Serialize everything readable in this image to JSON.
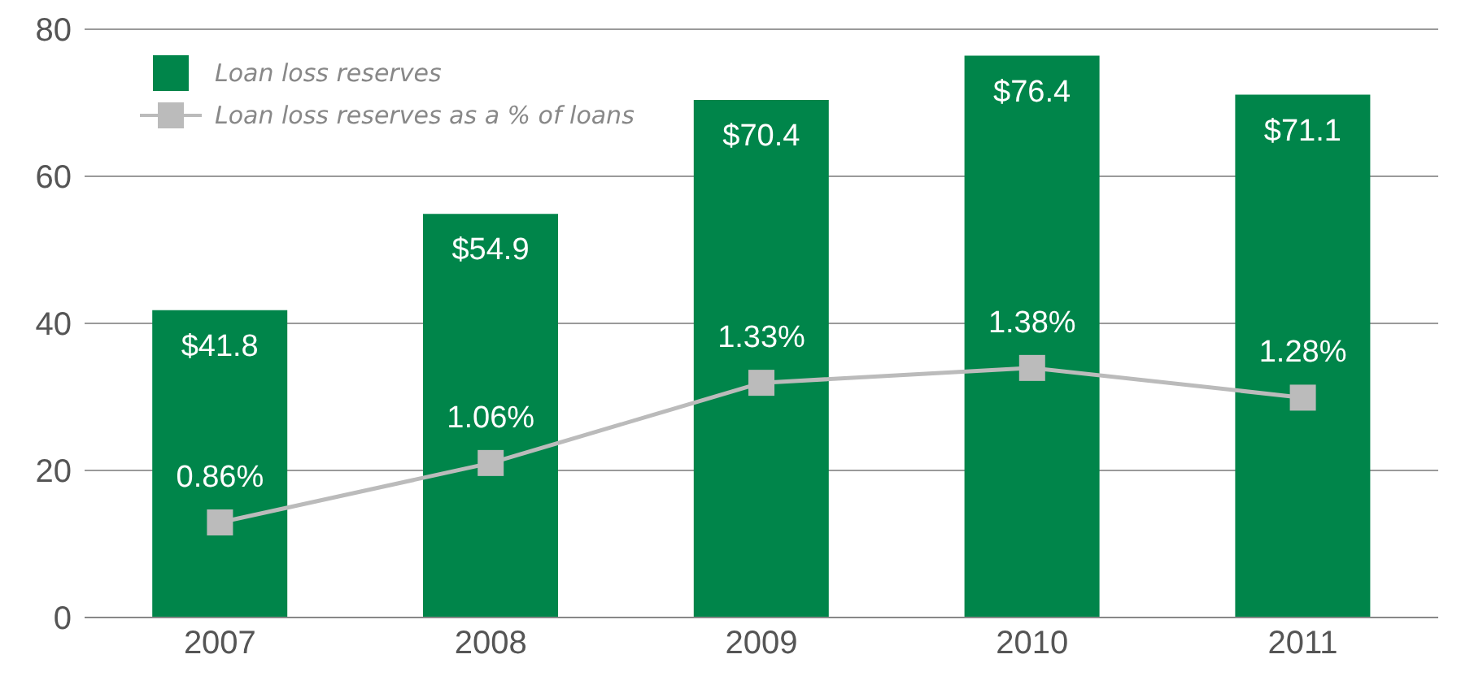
{
  "chart_data": {
    "type": "bar",
    "categories": [
      "2007",
      "2008",
      "2009",
      "2010",
      "2011"
    ],
    "series": [
      {
        "name": "Loan loss reserves",
        "color": "#00854a",
        "values": [
          41.8,
          54.9,
          70.4,
          76.4,
          71.1
        ],
        "value_labels": [
          "$41.8",
          "$54.9",
          "$70.4",
          "$76.4",
          "$71.1"
        ]
      },
      {
        "name": "Loan loss reserves as a % of loans",
        "type": "line",
        "axis": "y2",
        "color": "#bbbbbb",
        "values": [
          0.86,
          1.06,
          1.33,
          1.38,
          1.28
        ],
        "value_labels": [
          "0.86%",
          "1.06%",
          "1.33%",
          "1.38%",
          "1.28%"
        ]
      }
    ],
    "ylim": [
      0,
      80
    ],
    "yticks": [
      0,
      20,
      40,
      60,
      80
    ],
    "y2lim": [
      0.54,
      2.52
    ],
    "grid": "y",
    "legend": "top left",
    "marker": "square",
    "line_style": "solid"
  }
}
